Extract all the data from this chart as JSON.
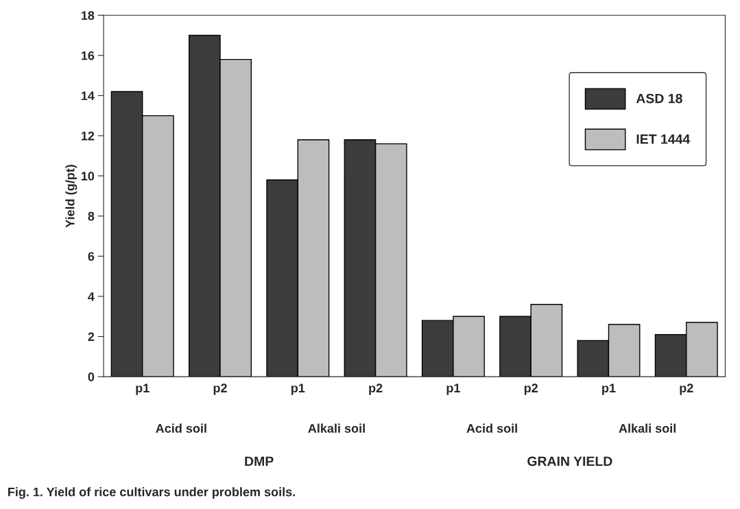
{
  "chart_data": {
    "type": "bar",
    "ylabel": "Yield (g/pt)",
    "categories": [
      "p1",
      "p2",
      "p1",
      "p2",
      "p1",
      "p2",
      "p1",
      "p2"
    ],
    "series": [
      {
        "name": "ASD 18",
        "color": "#3c3c3c",
        "values": [
          14.2,
          17.0,
          9.8,
          11.8,
          2.8,
          3.0,
          1.8,
          2.1
        ]
      },
      {
        "name": "IET 1444",
        "color": "#bdbdbd",
        "values": [
          13.0,
          15.8,
          11.8,
          11.6,
          3.0,
          3.6,
          2.6,
          2.7
        ]
      }
    ],
    "ylim": [
      0,
      18
    ],
    "yticks": [
      0,
      2,
      4,
      6,
      8,
      10,
      12,
      14,
      16,
      18
    ],
    "legend": "top right",
    "grid": false,
    "annotations": [
      "Acid soil",
      "Alkali soil",
      "Acid soil",
      "Alkali soil",
      "DMP",
      "GRAIN YIELD",
      "Fig. 1. Yield of rice cultivars under problem soils."
    ]
  }
}
